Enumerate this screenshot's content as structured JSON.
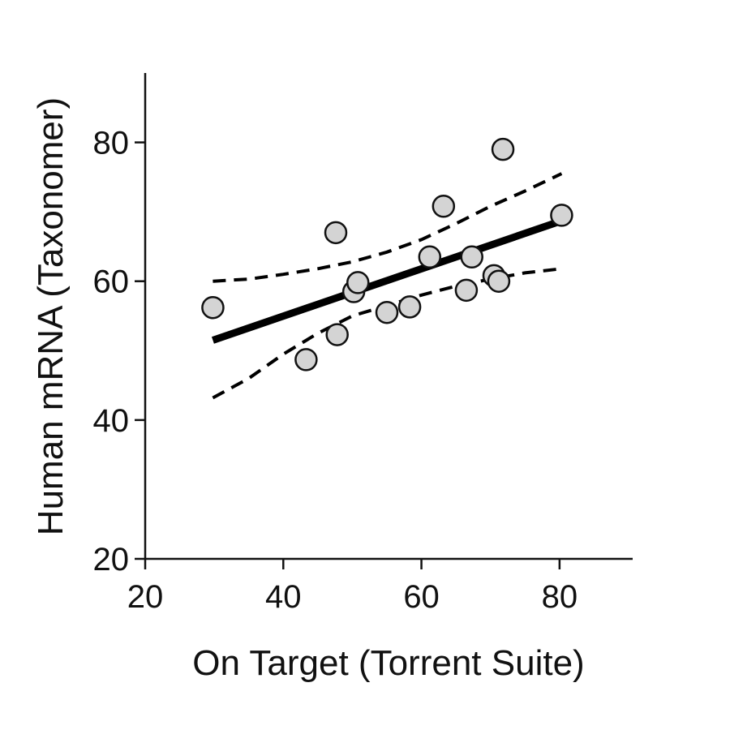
{
  "chart_data": {
    "type": "scatter",
    "title": "",
    "xlabel": "On Target (Torrent Suite)",
    "ylabel": "Human mRNA (Taxonomer)",
    "xlim": [
      20,
      90
    ],
    "ylim": [
      20,
      90
    ],
    "x_ticks": [
      20,
      40,
      60,
      80
    ],
    "y_ticks": [
      20,
      40,
      60,
      80
    ],
    "x_tick_labels": [
      "20",
      "40",
      "60",
      "80"
    ],
    "y_tick_labels": [
      "20",
      "40",
      "60",
      "80"
    ],
    "grid": false,
    "legend": "none",
    "points": [
      {
        "x": 29.8,
        "y": 56.2
      },
      {
        "x": 43.3,
        "y": 48.7
      },
      {
        "x": 47.6,
        "y": 67.0
      },
      {
        "x": 47.8,
        "y": 52.3
      },
      {
        "x": 50.2,
        "y": 58.5
      },
      {
        "x": 50.8,
        "y": 59.8
      },
      {
        "x": 55.0,
        "y": 55.5
      },
      {
        "x": 58.3,
        "y": 56.3
      },
      {
        "x": 61.2,
        "y": 63.5
      },
      {
        "x": 63.2,
        "y": 70.8
      },
      {
        "x": 66.5,
        "y": 58.7
      },
      {
        "x": 67.3,
        "y": 63.5
      },
      {
        "x": 70.5,
        "y": 60.8
      },
      {
        "x": 71.2,
        "y": 60.0
      },
      {
        "x": 71.8,
        "y": 79.0
      },
      {
        "x": 80.3,
        "y": 69.5
      }
    ],
    "fit_line": [
      {
        "x": 29.8,
        "y": 51.5
      },
      {
        "x": 80.3,
        "y": 68.7
      }
    ],
    "upper_band": [
      {
        "x": 29.8,
        "y": 60.0
      },
      {
        "x": 35,
        "y": 60.3
      },
      {
        "x": 40,
        "y": 61.0
      },
      {
        "x": 45,
        "y": 61.8
      },
      {
        "x": 50,
        "y": 62.8
      },
      {
        "x": 55,
        "y": 64.2
      },
      {
        "x": 60,
        "y": 66.0
      },
      {
        "x": 65,
        "y": 68.3
      },
      {
        "x": 70,
        "y": 70.8
      },
      {
        "x": 75,
        "y": 73.0
      },
      {
        "x": 80.3,
        "y": 75.5
      }
    ],
    "lower_band": [
      {
        "x": 29.8,
        "y": 43.2
      },
      {
        "x": 35,
        "y": 46.0
      },
      {
        "x": 40,
        "y": 49.5
      },
      {
        "x": 45,
        "y": 52.5
      },
      {
        "x": 50,
        "y": 55.0
      },
      {
        "x": 55,
        "y": 56.5
      },
      {
        "x": 60,
        "y": 58.0
      },
      {
        "x": 65,
        "y": 59.3
      },
      {
        "x": 70,
        "y": 60.3
      },
      {
        "x": 75,
        "y": 61.2
      },
      {
        "x": 80.3,
        "y": 61.8
      }
    ],
    "colors": {
      "point_fill": "#d4d4d4",
      "point_stroke": "#111111",
      "line": "#000000",
      "band": "#000000",
      "axis": "#111111"
    }
  }
}
